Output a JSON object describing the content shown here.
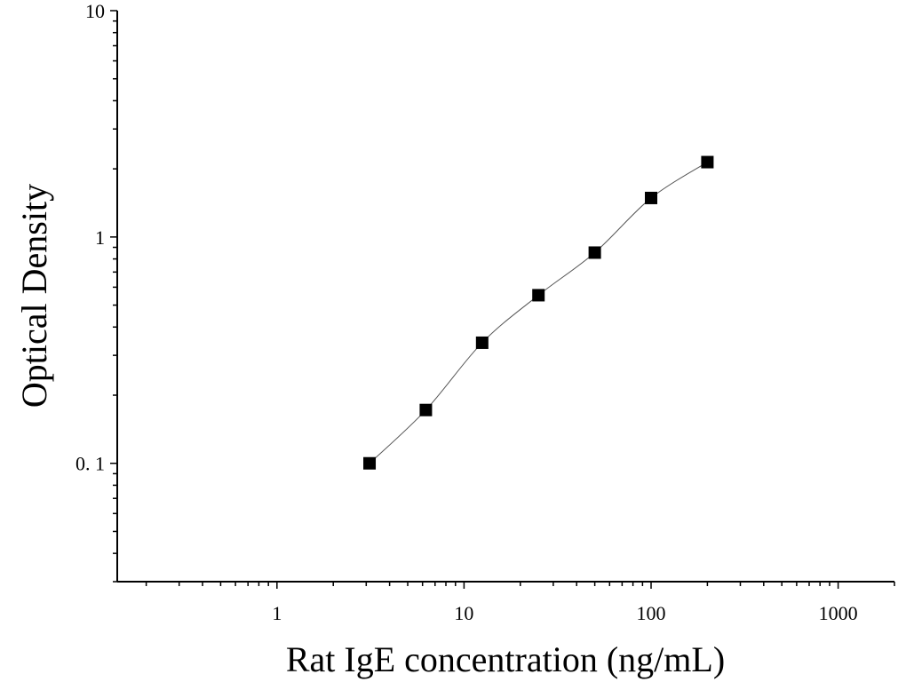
{
  "chart_data": {
    "type": "scatter",
    "xlabel": "Rat IgE concentration (ng/mL)",
    "ylabel": "Optical Density",
    "x_scale": "log",
    "y_scale": "log",
    "xlim": [
      0.14,
      2000
    ],
    "ylim": [
      0.03,
      10
    ],
    "x_ticks": [
      1,
      10,
      100,
      1000
    ],
    "x_tick_labels": [
      "1",
      "10",
      "100",
      "1000"
    ],
    "y_ticks": [
      0.1,
      1,
      10
    ],
    "y_tick_labels": [
      "0. 1",
      "1",
      "10"
    ],
    "grid": false,
    "legend": "none",
    "series": [
      {
        "x": [
          3.125,
          6.25,
          12.5,
          25,
          50,
          100,
          200
        ],
        "y": [
          0.1,
          0.172,
          0.341,
          0.553,
          0.853,
          1.487,
          2.142
        ]
      }
    ],
    "fit_curve": true,
    "colors": {
      "marker": "#000000",
      "curve": "#555555",
      "axis": "#000000"
    }
  }
}
